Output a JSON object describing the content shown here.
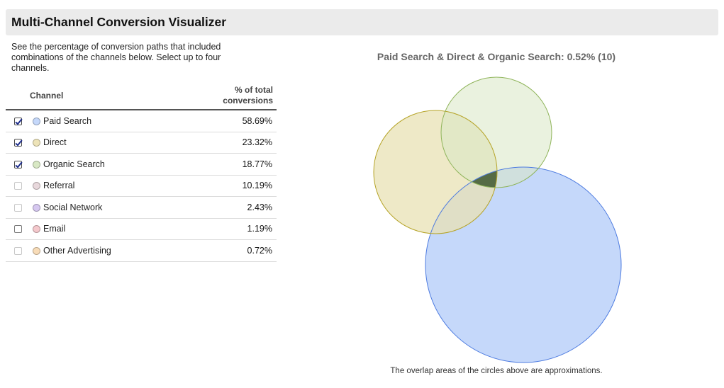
{
  "title": "Multi-Channel Conversion Visualizer",
  "intro": "See the percentage of conversion paths that included combinations of the channels below. Select up to four channels.",
  "table": {
    "col_channel": "Channel",
    "col_pct_line1": "% of total",
    "col_pct_line2": "conversions",
    "rows": [
      {
        "label": "Paid Search",
        "pct": "58.69%",
        "checked": true,
        "color": "#c5d8fa"
      },
      {
        "label": "Direct",
        "pct": "23.32%",
        "checked": true,
        "color": "#ede3b8"
      },
      {
        "label": "Organic Search",
        "pct": "18.77%",
        "checked": true,
        "color": "#d8e8c4"
      },
      {
        "label": "Referral",
        "pct": "10.19%",
        "checked": false,
        "color": "#e8d8dc"
      },
      {
        "label": "Social Network",
        "pct": "2.43%",
        "checked": false,
        "color": "#d6c8f0"
      },
      {
        "label": "Email",
        "pct": "1.19%",
        "checked": false,
        "color": "#f4c8cc"
      },
      {
        "label": "Other Advertising",
        "pct": "0.72%",
        "checked": false,
        "color": "#f8dcb8"
      }
    ]
  },
  "venn": {
    "title": "Paid Search & Direct & Organic Search: 0.52% (10)",
    "footnote": "The overlap areas of the circles above are approximations.",
    "colors": {
      "paid_fill": "#c5d8fa",
      "paid_stroke": "#4d7be0",
      "direct_fill": "#e8e2b4",
      "direct_stroke": "#b5a326",
      "organic_fill": "#d9e8c5",
      "organic_stroke": "#8fb45a",
      "triple_overlap": "#556b45"
    }
  }
}
